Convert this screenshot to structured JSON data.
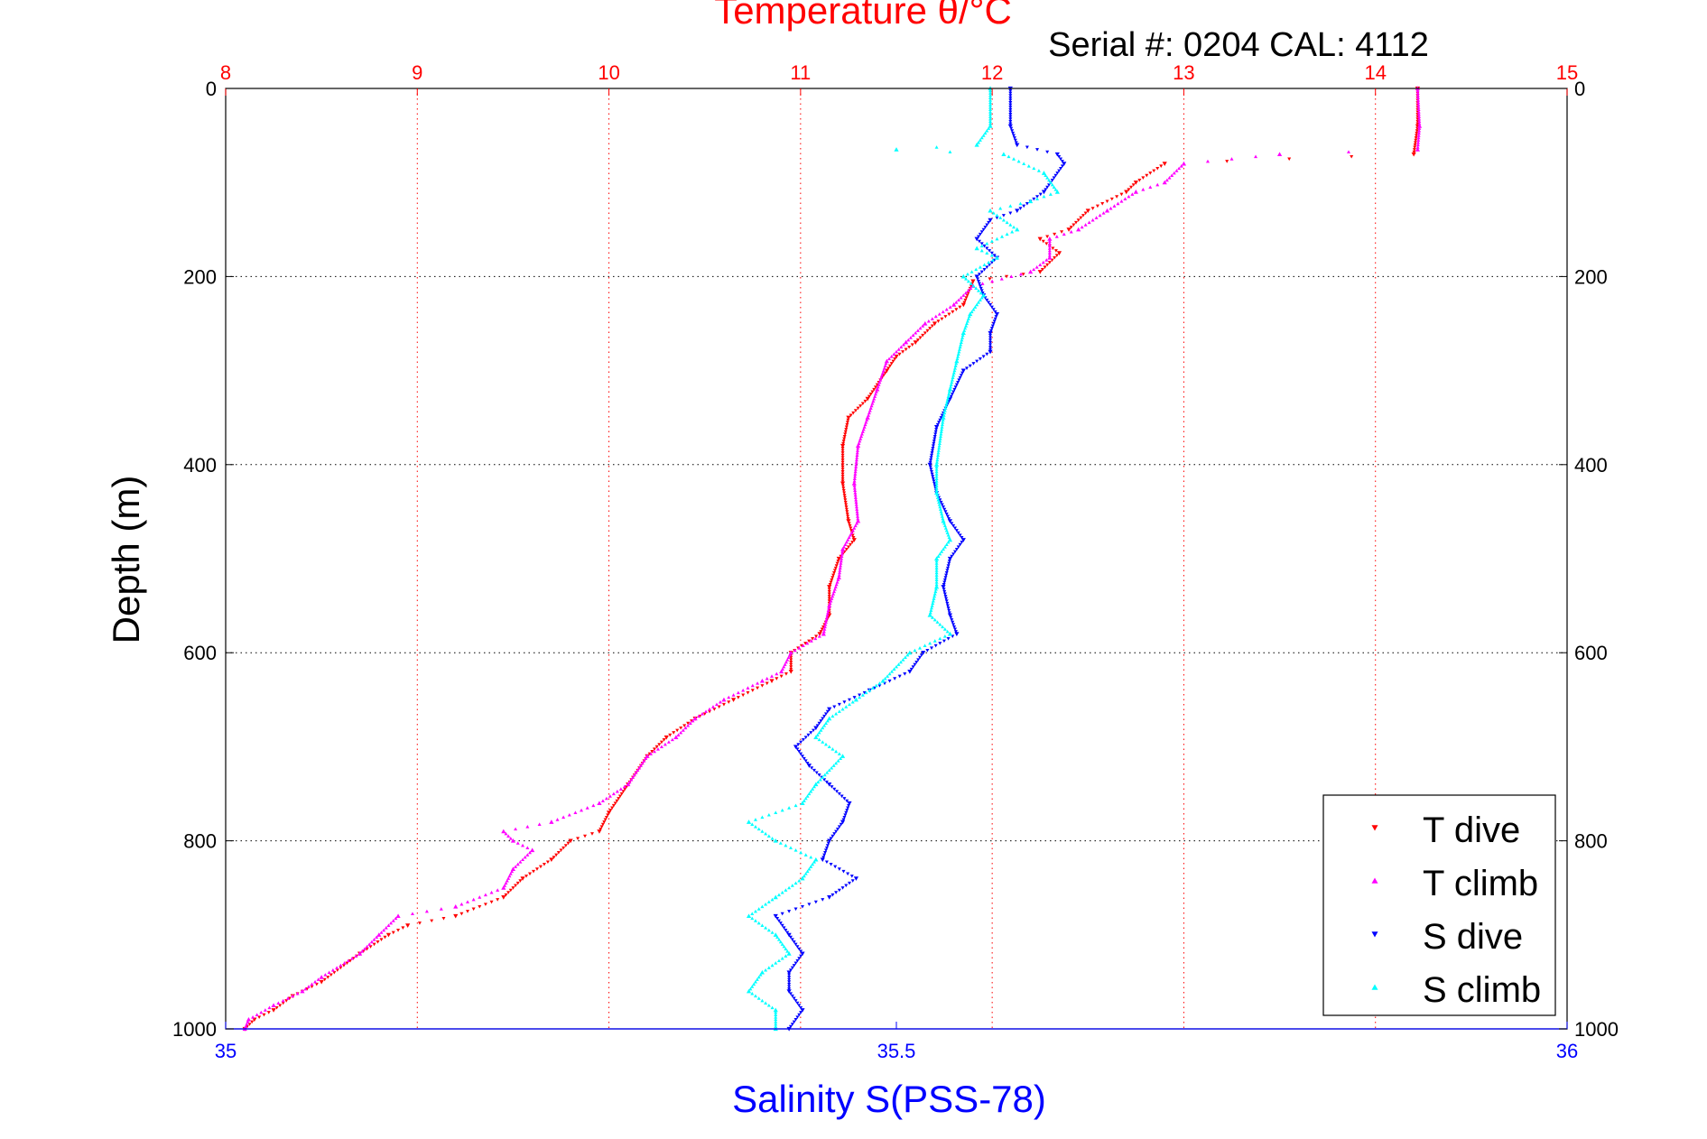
{
  "chart_data": {
    "type": "scatter",
    "title": "Temperature θ/°C",
    "subtitle": "Serial #: 0204  CAL: 4112",
    "ylabel": "Depth (m)",
    "xlabel": "Salinity S(PSS-78)",
    "y_axis": {
      "range": [
        0,
        1000
      ],
      "inverted": true,
      "ticks": [
        0,
        200,
        400,
        600,
        800,
        1000
      ]
    },
    "x_top_temperature": {
      "range": [
        8,
        15
      ],
      "ticks": [
        8,
        9,
        10,
        11,
        12,
        13,
        14,
        15
      ],
      "color": "#ff0000",
      "grid": true
    },
    "x_bottom_salinity": {
      "range": [
        35,
        36
      ],
      "ticks": [
        35,
        35.5,
        36
      ],
      "tick_labels": [
        "35",
        "35.5",
        "36"
      ],
      "color": "#0000ff"
    },
    "grid": {
      "horizontal": true,
      "vertical": true
    },
    "legend": {
      "placement": "bottom-right"
    },
    "series": [
      {
        "name": "T dive",
        "axis": "temperature",
        "color": "#ff0000",
        "marker": "triangle-down",
        "points": [
          [
            14.22,
            0
          ],
          [
            14.22,
            40
          ],
          [
            14.2,
            70
          ],
          [
            12.9,
            80
          ],
          [
            12.75,
            100
          ],
          [
            12.7,
            110
          ],
          [
            12.5,
            130
          ],
          [
            12.4,
            150
          ],
          [
            12.25,
            160
          ],
          [
            12.35,
            175
          ],
          [
            12.25,
            195
          ],
          [
            11.9,
            205
          ],
          [
            11.85,
            230
          ],
          [
            11.7,
            250
          ],
          [
            11.6,
            270
          ],
          [
            11.5,
            285
          ],
          [
            11.45,
            300
          ],
          [
            11.35,
            330
          ],
          [
            11.25,
            350
          ],
          [
            11.22,
            380
          ],
          [
            11.22,
            420
          ],
          [
            11.25,
            460
          ],
          [
            11.28,
            480
          ],
          [
            11.2,
            500
          ],
          [
            11.15,
            530
          ],
          [
            11.15,
            560
          ],
          [
            11.1,
            580
          ],
          [
            10.95,
            600
          ],
          [
            10.95,
            620
          ],
          [
            10.85,
            630
          ],
          [
            10.65,
            650
          ],
          [
            10.45,
            670
          ],
          [
            10.3,
            690
          ],
          [
            10.2,
            710
          ],
          [
            10.1,
            740
          ],
          [
            10.0,
            770
          ],
          [
            9.95,
            790
          ],
          [
            9.8,
            800
          ],
          [
            9.7,
            820
          ],
          [
            9.55,
            840
          ],
          [
            9.45,
            860
          ],
          [
            9.2,
            880
          ],
          [
            8.95,
            890
          ],
          [
            8.85,
            900
          ],
          [
            8.7,
            920
          ],
          [
            8.5,
            950
          ],
          [
            8.35,
            965
          ],
          [
            8.25,
            980
          ],
          [
            8.15,
            990
          ],
          [
            8.1,
            1000
          ]
        ]
      },
      {
        "name": "T climb",
        "axis": "temperature",
        "color": "#ff00ff",
        "marker": "triangle-up",
        "points": [
          [
            14.22,
            0
          ],
          [
            14.23,
            40
          ],
          [
            14.22,
            65
          ],
          [
            13.5,
            70
          ],
          [
            13.0,
            80
          ],
          [
            12.9,
            100
          ],
          [
            12.75,
            110
          ],
          [
            12.6,
            130
          ],
          [
            12.45,
            150
          ],
          [
            12.3,
            160
          ],
          [
            12.3,
            180
          ],
          [
            12.2,
            195
          ],
          [
            11.9,
            210
          ],
          [
            11.8,
            230
          ],
          [
            11.65,
            250
          ],
          [
            11.55,
            270
          ],
          [
            11.45,
            290
          ],
          [
            11.4,
            320
          ],
          [
            11.35,
            350
          ],
          [
            11.3,
            380
          ],
          [
            11.28,
            420
          ],
          [
            11.3,
            460
          ],
          [
            11.22,
            490
          ],
          [
            11.2,
            520
          ],
          [
            11.15,
            550
          ],
          [
            11.12,
            580
          ],
          [
            10.95,
            600
          ],
          [
            10.9,
            620
          ],
          [
            10.8,
            630
          ],
          [
            10.6,
            650
          ],
          [
            10.45,
            670
          ],
          [
            10.35,
            690
          ],
          [
            10.2,
            710
          ],
          [
            10.1,
            740
          ],
          [
            9.95,
            760
          ],
          [
            9.7,
            780
          ],
          [
            9.45,
            790
          ],
          [
            9.5,
            800
          ],
          [
            9.6,
            810
          ],
          [
            9.5,
            830
          ],
          [
            9.45,
            850
          ],
          [
            9.2,
            870
          ],
          [
            8.9,
            880
          ],
          [
            8.8,
            900
          ],
          [
            8.7,
            920
          ],
          [
            8.5,
            945
          ],
          [
            8.4,
            960
          ],
          [
            8.25,
            975
          ],
          [
            8.12,
            990
          ],
          [
            8.1,
            1000
          ]
        ]
      },
      {
        "name": "S dive",
        "axis": "salinity",
        "color": "#0000ff",
        "marker": "triangle-down",
        "points": [
          [
            35.585,
            0
          ],
          [
            35.585,
            40
          ],
          [
            35.59,
            60
          ],
          [
            35.62,
            70
          ],
          [
            35.625,
            80
          ],
          [
            35.61,
            110
          ],
          [
            35.59,
            130
          ],
          [
            35.57,
            140
          ],
          [
            35.56,
            160
          ],
          [
            35.575,
            180
          ],
          [
            35.56,
            200
          ],
          [
            35.565,
            220
          ],
          [
            35.575,
            240
          ],
          [
            35.57,
            260
          ],
          [
            35.57,
            280
          ],
          [
            35.55,
            300
          ],
          [
            35.54,
            330
          ],
          [
            35.53,
            360
          ],
          [
            35.525,
            400
          ],
          [
            35.53,
            430
          ],
          [
            35.54,
            460
          ],
          [
            35.55,
            480
          ],
          [
            35.54,
            500
          ],
          [
            35.535,
            530
          ],
          [
            35.54,
            560
          ],
          [
            35.545,
            580
          ],
          [
            35.52,
            600
          ],
          [
            35.51,
            620
          ],
          [
            35.48,
            640
          ],
          [
            35.45,
            660
          ],
          [
            35.44,
            680
          ],
          [
            35.425,
            700
          ],
          [
            35.435,
            720
          ],
          [
            35.45,
            740
          ],
          [
            35.465,
            760
          ],
          [
            35.46,
            780
          ],
          [
            35.45,
            800
          ],
          [
            35.445,
            820
          ],
          [
            35.47,
            840
          ],
          [
            35.45,
            860
          ],
          [
            35.41,
            880
          ],
          [
            35.42,
            900
          ],
          [
            35.43,
            920
          ],
          [
            35.42,
            940
          ],
          [
            35.42,
            960
          ],
          [
            35.43,
            980
          ],
          [
            35.42,
            1000
          ]
        ]
      },
      {
        "name": "S climb",
        "axis": "salinity",
        "color": "#00ffff",
        "marker": "triangle-up",
        "points": [
          [
            35.57,
            0
          ],
          [
            35.57,
            40
          ],
          [
            35.56,
            60
          ],
          [
            35.5,
            65
          ],
          [
            35.58,
            70
          ],
          [
            35.61,
            90
          ],
          [
            35.62,
            110
          ],
          [
            35.6,
            120
          ],
          [
            35.57,
            130
          ],
          [
            35.59,
            150
          ],
          [
            35.56,
            170
          ],
          [
            35.575,
            180
          ],
          [
            35.55,
            200
          ],
          [
            35.565,
            220
          ],
          [
            35.555,
            240
          ],
          [
            35.55,
            260
          ],
          [
            35.545,
            290
          ],
          [
            35.54,
            320
          ],
          [
            35.535,
            350
          ],
          [
            35.53,
            400
          ],
          [
            35.53,
            430
          ],
          [
            35.535,
            460
          ],
          [
            35.54,
            480
          ],
          [
            35.53,
            500
          ],
          [
            35.53,
            530
          ],
          [
            35.525,
            560
          ],
          [
            35.54,
            580
          ],
          [
            35.51,
            600
          ],
          [
            35.49,
            630
          ],
          [
            35.47,
            650
          ],
          [
            35.45,
            670
          ],
          [
            35.44,
            690
          ],
          [
            35.46,
            710
          ],
          [
            35.44,
            740
          ],
          [
            35.43,
            760
          ],
          [
            35.39,
            780
          ],
          [
            35.41,
            800
          ],
          [
            35.44,
            820
          ],
          [
            35.43,
            840
          ],
          [
            35.41,
            860
          ],
          [
            35.39,
            880
          ],
          [
            35.41,
            900
          ],
          [
            35.42,
            920
          ],
          [
            35.4,
            940
          ],
          [
            35.39,
            960
          ],
          [
            35.41,
            980
          ],
          [
            35.41,
            1000
          ]
        ]
      }
    ]
  }
}
